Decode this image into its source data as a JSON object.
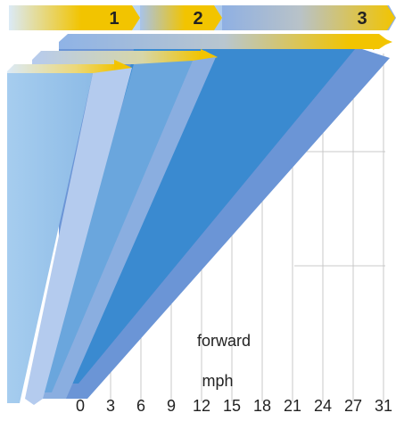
{
  "gear_labels": [
    "1",
    "2",
    "3"
  ],
  "axis": {
    "ticks": [
      "0",
      "3",
      "6",
      "9",
      "12",
      "15",
      "18",
      "21",
      "24",
      "27",
      "31"
    ],
    "direction_label": "forward",
    "unit_label": "mph"
  },
  "colors": {
    "arrow_gold": "#f2c400",
    "band_light": "#cfe4f5",
    "band_mid": "#9dbbe6",
    "wedge_light": "#9cc4ea",
    "wedge_pale": "#b4cbee",
    "wedge_mid": "#6aa6dd",
    "wedge_slate": "#8aaee0",
    "wedge_deep": "#3a8ad0",
    "wedge_edge": "#6b95d6",
    "grid": "#c8c8c8",
    "text": "#222222"
  }
}
